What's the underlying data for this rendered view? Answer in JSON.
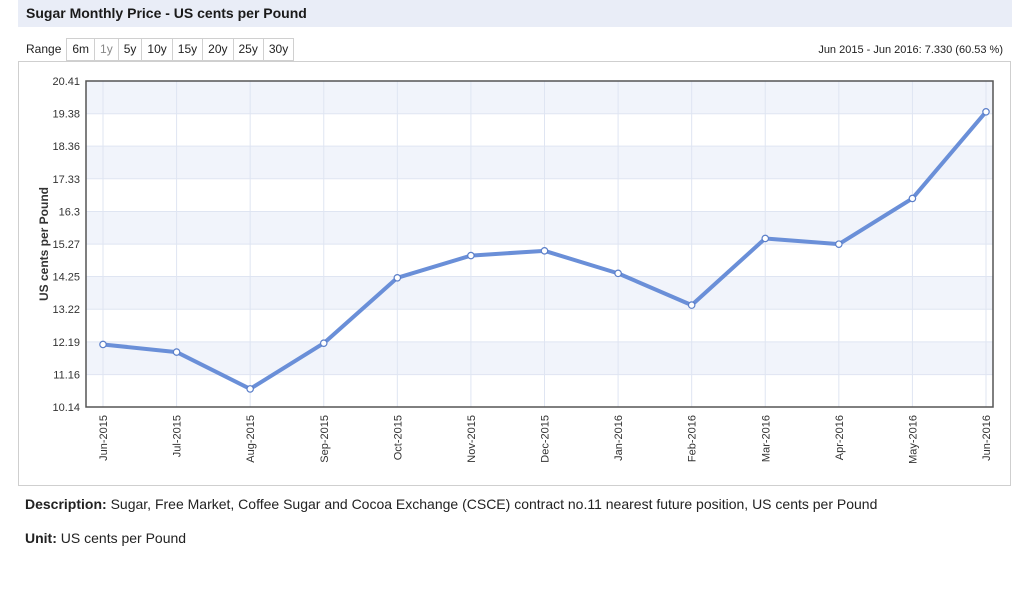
{
  "header": {
    "title": "Sugar Monthly Price - US cents per Pound"
  },
  "range": {
    "label": "Range",
    "buttons": [
      "6m",
      "1y",
      "5y",
      "10y",
      "15y",
      "20y",
      "25y",
      "30y"
    ],
    "summary": "Jun 2015 - Jun 2016: 7.330 (60.53 %)"
  },
  "chart_data": {
    "type": "line",
    "ylabel": "US cents per Pound",
    "xlabel": "",
    "categories": [
      "Jun-2015",
      "Jul-2015",
      "Aug-2015",
      "Sep-2015",
      "Oct-2015",
      "Nov-2015",
      "Dec-2015",
      "Jan-2016",
      "Feb-2016",
      "Mar-2016",
      "Apr-2016",
      "May-2016",
      "Jun-2016"
    ],
    "values": [
      12.11,
      11.87,
      10.71,
      12.15,
      14.21,
      14.91,
      15.06,
      14.35,
      13.35,
      15.45,
      15.27,
      16.71,
      19.44
    ],
    "yticks": [
      "20.41",
      "19.38",
      "18.36",
      "17.33",
      "16.3",
      "15.27",
      "14.25",
      "13.22",
      "12.19",
      "11.16",
      "10.14"
    ],
    "ylim": [
      10.14,
      20.41
    ],
    "grid": true,
    "line_color": "#6a8fd8"
  },
  "description": {
    "label": "Description:",
    "text": "Sugar, Free Market, Coffee Sugar and Cocoa Exchange (CSCE) contract no.11 nearest future position, US cents per Pound"
  },
  "unit": {
    "label": "Unit:",
    "text": "US cents per Pound"
  }
}
